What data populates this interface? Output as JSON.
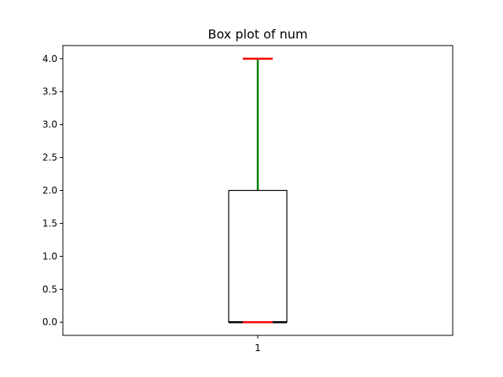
{
  "chart_data": {
    "type": "box",
    "title": "Box plot of num",
    "xlabel": "",
    "ylabel": "",
    "categories": [
      "1"
    ],
    "boxes": [
      {
        "label": "1",
        "whisker_low": 0.0,
        "q1": 0.0,
        "median": 0.0,
        "q3": 2.0,
        "whisker_high": 4.0
      }
    ],
    "ylim": [
      -0.2,
      4.2
    ],
    "yticks": [
      0.0,
      0.5,
      1.0,
      1.5,
      2.0,
      2.5,
      3.0,
      3.5,
      4.0
    ],
    "ytick_labels": [
      "0.0",
      "0.5",
      "1.0",
      "1.5",
      "2.0",
      "2.5",
      "3.0",
      "3.5",
      "4.0"
    ],
    "grid": false,
    "colors": {
      "box": "#000000",
      "median": "#000000",
      "whisker": "#008000",
      "cap": "#ff0000"
    }
  }
}
